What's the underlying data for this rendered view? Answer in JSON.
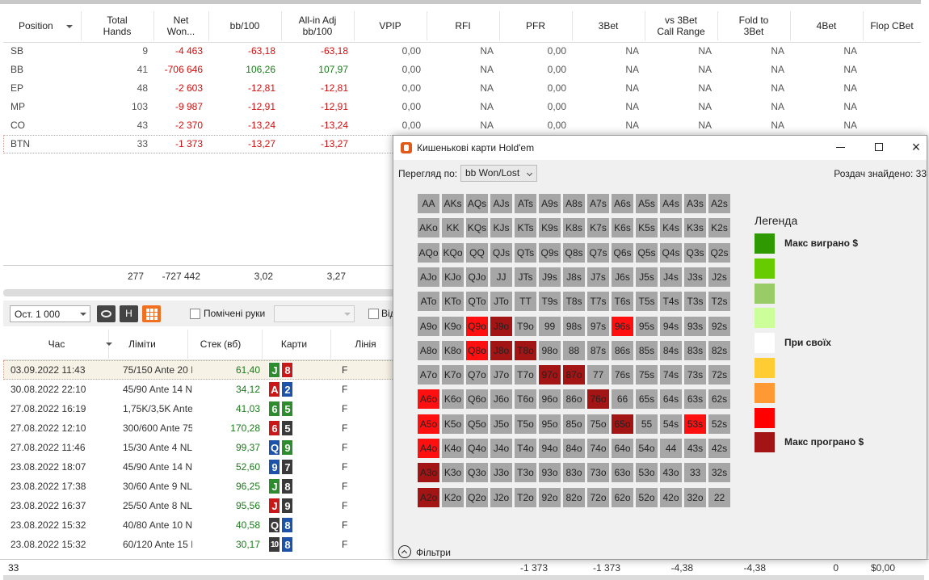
{
  "main_table": {
    "headers": [
      "Position",
      "Total\nHands",
      "Net\nWon...",
      "bb/100",
      "All-in Adj\nbb/100",
      "VPIP",
      "RFI",
      "PFR",
      "3Bet",
      "vs 3Bet\nCall Range",
      "Fold to\n3Bet",
      "4Bet",
      "Flop CBet"
    ],
    "rows": [
      [
        "SB",
        "9",
        "-4 463",
        "-63,18",
        "-63,18",
        "0,00",
        "NA",
        "0,00",
        "NA",
        "NA",
        "NA",
        "NA"
      ],
      [
        "BB",
        "41",
        "-706 646",
        "106,26",
        "107,97",
        "0,00",
        "NA",
        "0,00",
        "NA",
        "NA",
        "NA",
        "NA"
      ],
      [
        "EP",
        "48",
        "-2 603",
        "-12,81",
        "-12,81",
        "0,00",
        "NA",
        "0,00",
        "NA",
        "NA",
        "NA",
        "NA"
      ],
      [
        "MP",
        "103",
        "-9 987",
        "-12,91",
        "-12,91",
        "0,00",
        "NA",
        "0,00",
        "NA",
        "NA",
        "NA",
        "NA"
      ],
      [
        "CO",
        "43",
        "-2 370",
        "-13,24",
        "-13,24",
        "0,00",
        "NA",
        "0,00",
        "NA",
        "NA",
        "NA",
        "NA"
      ],
      [
        "BTN",
        "33",
        "-1 373",
        "-13,27",
        "-13,27"
      ]
    ],
    "totals": [
      "277",
      "-727 442",
      "3,02",
      "3,27"
    ]
  },
  "toolbar": {
    "period": "Ост. 1 000",
    "h_button": "H",
    "marked_hands": "Помічені руки",
    "from_label": "Від"
  },
  "hands_table": {
    "headers": [
      "Час",
      "Ліміти",
      "Стек (вб)",
      "Карти",
      "Лінія"
    ],
    "rows": [
      {
        "time": "03.09.2022 11:43",
        "limit": "75/150 Ante 20 I",
        "stack": "61,40",
        "cards": [
          {
            "rank": "J",
            "color": "#2e8b2e"
          },
          {
            "rank": "8",
            "color": "#c81818"
          }
        ],
        "line": "F"
      },
      {
        "time": "30.08.2022 22:10",
        "limit": "45/90 Ante 14 N",
        "stack": "34,12",
        "cards": [
          {
            "rank": "A",
            "color": "#c81818"
          },
          {
            "rank": "2",
            "color": "#1c52a8"
          }
        ],
        "line": "F"
      },
      {
        "time": "27.08.2022 16:19",
        "limit": "1,75K/3,5K Ante",
        "stack": "41,03",
        "cards": [
          {
            "rank": "6",
            "color": "#2e8b2e"
          },
          {
            "rank": "5",
            "color": "#2e8b2e"
          }
        ],
        "line": "F"
      },
      {
        "time": "27.08.2022 12:10",
        "limit": "300/600 Ante 75",
        "stack": "170,28",
        "cards": [
          {
            "rank": "6",
            "color": "#c81818"
          },
          {
            "rank": "5",
            "color": "#3a3a3a"
          }
        ],
        "line": "F"
      },
      {
        "time": "27.08.2022 11:46",
        "limit": "15/30 Ante 4 NL",
        "stack": "99,37",
        "cards": [
          {
            "rank": "Q",
            "color": "#1c52a8"
          },
          {
            "rank": "9",
            "color": "#2e8b2e"
          }
        ],
        "line": "F"
      },
      {
        "time": "23.08.2022 18:07",
        "limit": "45/90 Ante 14 N",
        "stack": "52,60",
        "cards": [
          {
            "rank": "9",
            "color": "#1c52a8"
          },
          {
            "rank": "7",
            "color": "#3a3a3a"
          }
        ],
        "line": "F"
      },
      {
        "time": "23.08.2022 17:38",
        "limit": "30/60 Ante 9 NL",
        "stack": "96,25",
        "cards": [
          {
            "rank": "J",
            "color": "#2e8b2e"
          },
          {
            "rank": "8",
            "color": "#3a3a3a"
          }
        ],
        "line": "F"
      },
      {
        "time": "23.08.2022 16:37",
        "limit": "25/50 Ante 8 NL",
        "stack": "95,56",
        "cards": [
          {
            "rank": "J",
            "color": "#c81818"
          },
          {
            "rank": "9",
            "color": "#3a3a3a"
          }
        ],
        "line": "F"
      },
      {
        "time": "23.08.2022 15:32",
        "limit": "40/80 Ante 10 N",
        "stack": "40,58",
        "cards": [
          {
            "rank": "Q",
            "color": "#3a3a3a"
          },
          {
            "rank": "8",
            "color": "#1c52a8"
          }
        ],
        "line": "F"
      },
      {
        "time": "23.08.2022 15:32",
        "limit": "60/120 Ante 15 I",
        "stack": "30,17",
        "cards": [
          {
            "rank": "10",
            "color": "#3a3a3a"
          },
          {
            "rank": "8",
            "color": "#1c52a8"
          }
        ],
        "line": "F"
      }
    ]
  },
  "status_bar": {
    "count": "33",
    "values": [
      "-1 373",
      "-1 373",
      "-4,38",
      "-4,38",
      "0",
      "$0,00"
    ]
  },
  "dialog": {
    "title": "Кишенькові карти Hold'em",
    "view_by_label": "Перегляд по:",
    "view_by_value": "bb Won/Lost",
    "hands_found": "Роздач знайдено: 33",
    "cell_color": "#a6a6a6",
    "grid": [
      [
        "AA",
        "AKs",
        "AQs",
        "AJs",
        "ATs",
        "A9s",
        "A8s",
        "A7s",
        "A6s",
        "A5s",
        "A4s",
        "A3s",
        "A2s"
      ],
      [
        "AKo",
        "KK",
        "KQs",
        "KJs",
        "KTs",
        "K9s",
        "K8s",
        "K7s",
        "K6s",
        "K5s",
        "K4s",
        "K3s",
        "K2s"
      ],
      [
        "AQo",
        "KQo",
        "QQ",
        "QJs",
        "QTs",
        "Q9s",
        "Q8s",
        "Q7s",
        "Q6s",
        "Q5s",
        "Q4s",
        "Q3s",
        "Q2s"
      ],
      [
        "AJo",
        "KJo",
        "QJo",
        "JJ",
        "JTs",
        "J9s",
        "J8s",
        "J7s",
        "J6s",
        "J5s",
        "J4s",
        "J3s",
        "J2s"
      ],
      [
        "ATo",
        "KTo",
        "QTo",
        "JTo",
        "TT",
        "T9s",
        "T8s",
        "T7s",
        "T6s",
        "T5s",
        "T4s",
        "T3s",
        "T2s"
      ],
      [
        "A9o",
        "K9o",
        {
          "label": "Q9o",
          "color": "#ff1010"
        },
        {
          "label": "J9o",
          "color": "#a31515"
        },
        "T9o",
        "99",
        "98s",
        "97s",
        {
          "label": "96s",
          "color": "#ff1010"
        },
        "95s",
        "94s",
        "93s",
        "92s"
      ],
      [
        "A8o",
        "K8o",
        {
          "label": "Q8o",
          "color": "#ff1010"
        },
        {
          "label": "J8o",
          "color": "#a31515"
        },
        {
          "label": "T8o",
          "color": "#a31515"
        },
        "98o",
        "88",
        "87s",
        "86s",
        "85s",
        "84s",
        "83s",
        "82s"
      ],
      [
        "A7o",
        "K7o",
        "Q7o",
        "J7o",
        "T7o",
        {
          "label": "97o",
          "color": "#a31515"
        },
        {
          "label": "87o",
          "color": "#a31515"
        },
        "77",
        "76s",
        "75s",
        "74s",
        "73s",
        "72s"
      ],
      [
        {
          "label": "A6o",
          "color": "#ff1010"
        },
        "K6o",
        "Q6o",
        "J6o",
        "T6o",
        "96o",
        "86o",
        {
          "label": "76o",
          "color": "#a31515"
        },
        "66",
        "65s",
        "64s",
        "63s",
        "62s"
      ],
      [
        {
          "label": "A5o",
          "color": "#ff1010"
        },
        "K5o",
        "Q5o",
        "J5o",
        "T5o",
        "95o",
        "85o",
        "75o",
        {
          "label": "65o",
          "color": "#a31515"
        },
        "55",
        "54s",
        {
          "label": "53s",
          "color": "#ff1010"
        },
        "52s"
      ],
      [
        {
          "label": "A4o",
          "color": "#ff1010"
        },
        "K4o",
        "Q4o",
        "J4o",
        "T4o",
        "94o",
        "84o",
        "74o",
        "64o",
        "54o",
        "44",
        "43s",
        "42s"
      ],
      [
        {
          "label": "A3o",
          "color": "#a31515"
        },
        "K3o",
        "Q3o",
        "J3o",
        "T3o",
        "93o",
        "83o",
        "73o",
        "63o",
        "53o",
        "43o",
        "33",
        "32s"
      ],
      [
        {
          "label": "A2o",
          "color": "#a31515"
        },
        "K2o",
        "Q2o",
        "J2o",
        "T2o",
        "92o",
        "82o",
        "72o",
        "62o",
        "52o",
        "42o",
        "32o",
        "22"
      ]
    ],
    "legend": {
      "title": "Легенда",
      "items": [
        {
          "color": "#2e9900",
          "label": "Макс виграно $"
        },
        {
          "color": "#66cc00"
        },
        {
          "color": "#99cc66"
        },
        {
          "color": "#ccff99"
        },
        {
          "color": "#ffffff",
          "label": "При своїх"
        },
        {
          "color": "#ffcc33"
        },
        {
          "color": "#ff9933"
        },
        {
          "color": "#ff0000"
        },
        {
          "color": "#a31515",
          "label": "Макс програно $"
        }
      ]
    },
    "filters": "Фільтри"
  }
}
